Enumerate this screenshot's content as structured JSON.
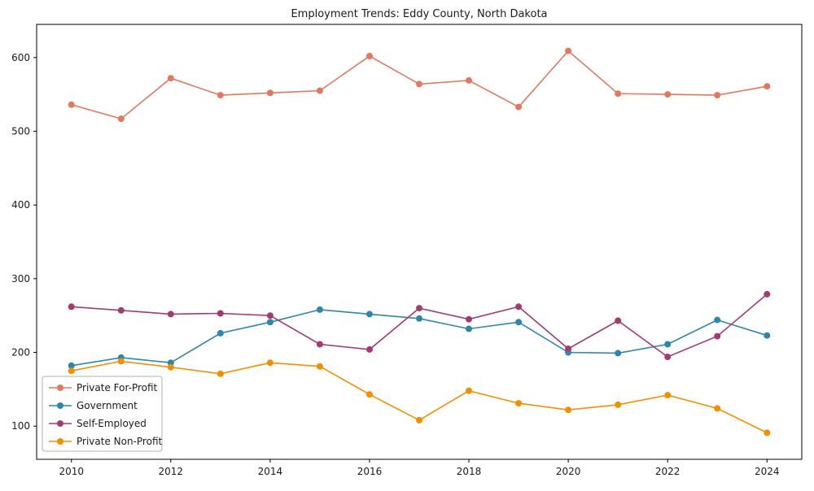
{
  "title": "Employment Trends: Eddy County, North Dakota",
  "chart_data": {
    "type": "line",
    "title": "Employment Trends: Eddy County, North Dakota",
    "xlabel": "",
    "ylabel": "",
    "grid": false,
    "legend_position": "lower-left",
    "x": [
      2010,
      2011,
      2012,
      2013,
      2014,
      2015,
      2016,
      2017,
      2018,
      2019,
      2020,
      2021,
      2022,
      2023,
      2024
    ],
    "xticks": [
      2010,
      2012,
      2014,
      2016,
      2018,
      2020,
      2022,
      2024
    ],
    "yticks": [
      100,
      200,
      300,
      400,
      500,
      600
    ],
    "xlim": [
      2009.3,
      2024.7
    ],
    "ylim": [
      55,
      645
    ],
    "series": [
      {
        "name": "Private For-Profit",
        "color": "#E0795F",
        "values": [
          536,
          517,
          572,
          549,
          552,
          555,
          602,
          564,
          569,
          533,
          609,
          551,
          550,
          549,
          561
        ]
      },
      {
        "name": "Government",
        "color": "#2E86AB",
        "values": [
          182,
          193,
          186,
          226,
          241,
          258,
          252,
          246,
          232,
          241,
          200,
          199,
          211,
          244,
          223
        ]
      },
      {
        "name": "Self-Employed",
        "color": "#A23B72",
        "values": [
          262,
          257,
          252,
          253,
          250,
          211,
          204,
          260,
          245,
          262,
          205,
          243,
          194,
          222,
          279
        ]
      },
      {
        "name": "Private Non-Profit",
        "color": "#F18F01",
        "values": [
          175,
          188,
          180,
          171,
          186,
          181,
          143,
          108,
          148,
          131,
          122,
          129,
          142,
          124,
          91
        ]
      }
    ]
  }
}
